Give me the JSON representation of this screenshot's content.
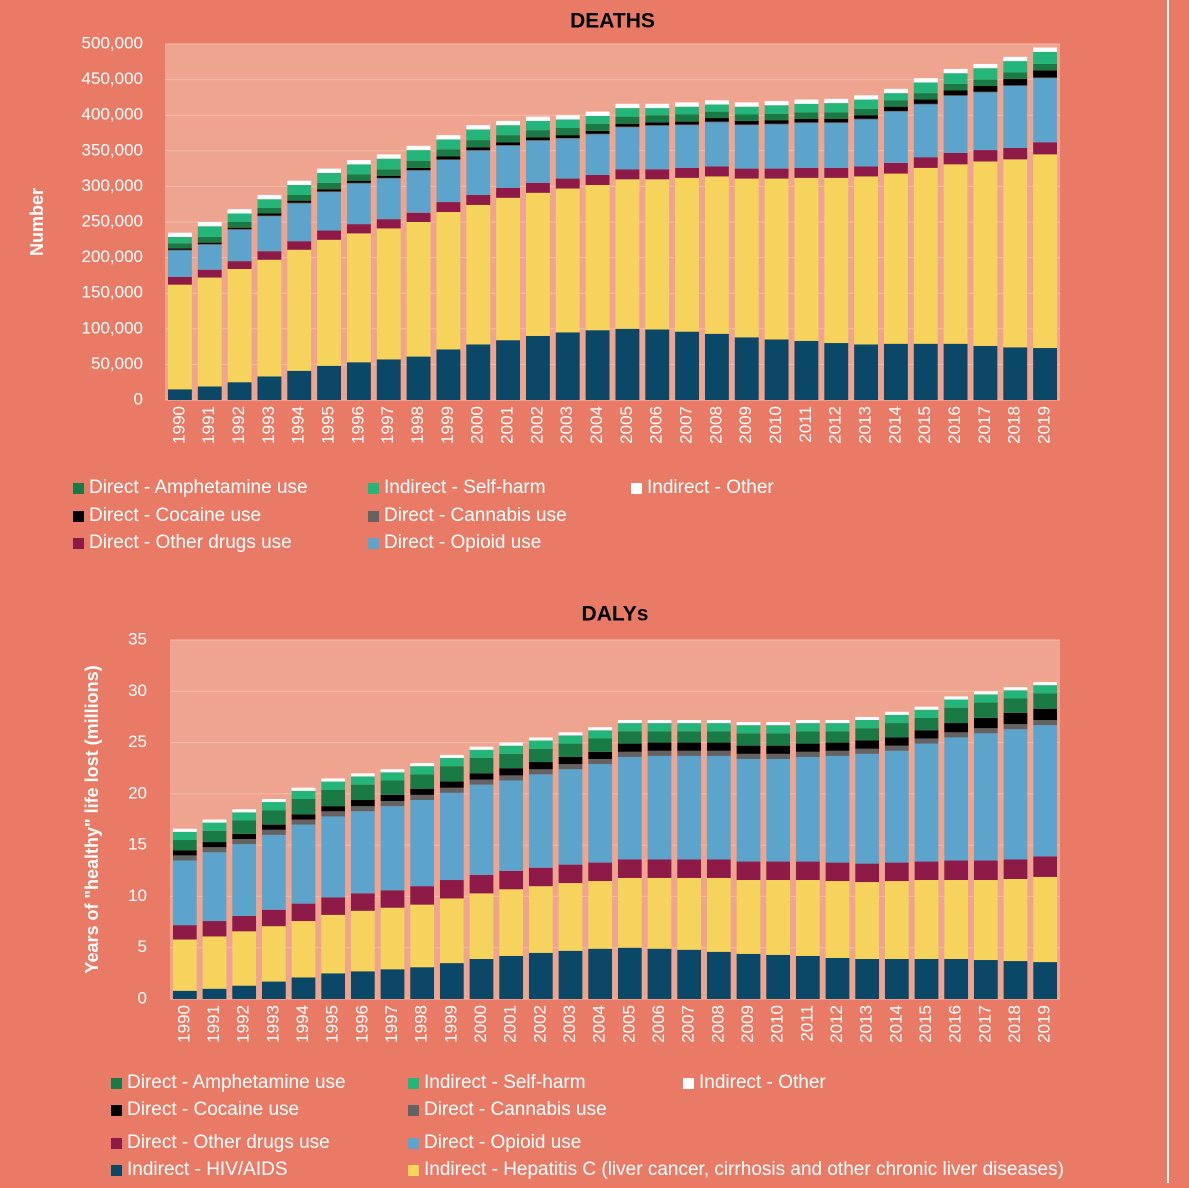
{
  "chart_data": [
    {
      "type": "stacked-bar",
      "title": "DEATHS",
      "y_label": "Number",
      "categories": [
        "1990",
        "1991",
        "1992",
        "1993",
        "1994",
        "1995",
        "1996",
        "1997",
        "1998",
        "1999",
        "2000",
        "2001",
        "2002",
        "2003",
        "2004",
        "2005",
        "2006",
        "2007",
        "2008",
        "2009",
        "2010",
        "2011",
        "2012",
        "2013",
        "2014",
        "2015",
        "2016",
        "2017",
        "2018",
        "2019"
      ],
      "ylim": [
        0,
        500000
      ],
      "yticks": [
        0,
        {
          "value": 50000,
          "label": "50,000"
        },
        {
          "value": 100000,
          "label": "100,000"
        },
        {
          "value": 150000,
          "label": "150,000"
        },
        {
          "value": 200000,
          "label": "200,000"
        },
        {
          "value": 250000,
          "label": "250,000"
        },
        {
          "value": 300000,
          "label": "300,000"
        },
        {
          "value": 350000,
          "label": "350,000"
        },
        {
          "value": 400000,
          "label": "400,000"
        },
        {
          "value": 450000,
          "label": "450,000"
        },
        {
          "value": 500000,
          "label": "500,000"
        }
      ],
      "grid": true,
      "series": [
        {
          "color": "#0b4766",
          "values": [
            15000,
            19000,
            25000,
            33000,
            41000,
            48000,
            53000,
            57000,
            61000,
            71000,
            78000,
            84000,
            90000,
            95000,
            98000,
            100000,
            99000,
            96000,
            93000,
            88000,
            85000,
            83000,
            80000,
            78000,
            79000,
            79000,
            79000,
            76000,
            74000,
            73000
          ]
        },
        {
          "color": "#f5d35c",
          "values": [
            147000,
            153000,
            159000,
            164000,
            170000,
            177000,
            181000,
            184000,
            189000,
            193000,
            196000,
            200000,
            201000,
            202000,
            204000,
            210000,
            211000,
            216000,
            221000,
            223000,
            226000,
            229000,
            232000,
            236000,
            239000,
            247000,
            252000,
            259000,
            264000,
            272000
          ]
        },
        {
          "name": "Direct - Other drugs use",
          "color": "#8e1a47",
          "values": [
            11000,
            11000,
            11000,
            12000,
            12000,
            13000,
            13000,
            13000,
            13000,
            14000,
            14000,
            14000,
            14000,
            14000,
            14000,
            14000,
            14000,
            14000,
            14000,
            14000,
            14000,
            14000,
            14000,
            14000,
            15000,
            15000,
            16000,
            16000,
            16000,
            17000
          ]
        },
        {
          "name": "Direct - Opioid use",
          "color": "#5da4cc",
          "values": [
            37000,
            35000,
            44000,
            49000,
            53000,
            54000,
            57000,
            57000,
            59000,
            59000,
            62000,
            59000,
            59000,
            56000,
            57000,
            59000,
            61000,
            60000,
            62000,
            61000,
            62000,
            63000,
            63000,
            66000,
            72000,
            74000,
            80000,
            81000,
            87000,
            90000
          ]
        },
        {
          "name": "Direct - Cannabis use",
          "color": "#636363",
          "values": [
            1000,
            1000,
            1000,
            1000,
            1000,
            1000,
            1000,
            1000,
            1000,
            1000,
            1000,
            1000,
            1000,
            1000,
            1000,
            1000,
            1000,
            1000,
            1000,
            1000,
            1000,
            1000,
            1000,
            1000,
            1000,
            1000,
            1000,
            1000,
            1000,
            1000
          ]
        },
        {
          "name": "Direct - Cocaine use",
          "color": "#000000",
          "values": [
            2000,
            2000,
            2000,
            3000,
            3000,
            3000,
            3000,
            3000,
            3000,
            4000,
            4000,
            4000,
            4000,
            4000,
            4000,
            4000,
            4000,
            4000,
            5000,
            5000,
            5000,
            5000,
            5000,
            5000,
            6000,
            6000,
            7000,
            8000,
            9000,
            10000
          ]
        },
        {
          "name": "Direct - Amphetamine use",
          "color": "#1a7a46",
          "values": [
            7000,
            8000,
            8000,
            8000,
            8000,
            9000,
            9000,
            9000,
            10000,
            10000,
            10000,
            10000,
            10000,
            10000,
            10000,
            10000,
            10000,
            10000,
            9000,
            9000,
            9000,
            9000,
            9000,
            9000,
            9000,
            9000,
            9000,
            9000,
            9000,
            9000
          ]
        },
        {
          "name": "Indirect - Self-harm",
          "color": "#24b57a",
          "values": [
            9000,
            15000,
            12000,
            12000,
            14000,
            14000,
            14000,
            15000,
            15000,
            14000,
            15000,
            14000,
            13000,
            12000,
            11000,
            12000,
            10000,
            11000,
            10000,
            11000,
            12000,
            12000,
            13000,
            13000,
            10000,
            15000,
            15000,
            16000,
            16000,
            17000
          ]
        },
        {
          "name": "Indirect - Other",
          "color": "#ffffff",
          "values": [
            6000,
            6000,
            6000,
            6000,
            6000,
            6000,
            6000,
            6000,
            6000,
            6000,
            6000,
            6000,
            6000,
            6000,
            6000,
            6000,
            6000,
            6000,
            6000,
            6000,
            6000,
            6000,
            6000,
            6000,
            6000,
            6000,
            6000,
            6000,
            6000,
            6000
          ]
        }
      ]
    },
    {
      "type": "stacked-bar",
      "title": "DALYs",
      "y_label": "Years of \"healthy\" life lost (millions)",
      "categories": [
        "1990",
        "1991",
        "1992",
        "1993",
        "1994",
        "1995",
        "1996",
        "1997",
        "1998",
        "1999",
        "2000",
        "2001",
        "2002",
        "2003",
        "2004",
        "2005",
        "2006",
        "2007",
        "2008",
        "2009",
        "2010",
        "2011",
        "2012",
        "2013",
        "2014",
        "2015",
        "2016",
        "2017",
        "2018",
        "2019"
      ],
      "ylim": [
        0,
        35
      ],
      "yticks": [
        0,
        5,
        10,
        15,
        20,
        25,
        30,
        35
      ],
      "grid": true,
      "series": [
        {
          "name": "Indirect - HIV/AIDS",
          "color": "#0b4766",
          "values": [
            0.8,
            1.0,
            1.3,
            1.7,
            2.1,
            2.5,
            2.7,
            2.9,
            3.1,
            3.5,
            3.9,
            4.2,
            4.5,
            4.7,
            4.9,
            5.0,
            4.9,
            4.8,
            4.6,
            4.4,
            4.3,
            4.2,
            4.0,
            3.9,
            3.9,
            3.9,
            3.9,
            3.8,
            3.7,
            3.6
          ]
        },
        {
          "name": "Indirect - Hepatitis C (liver cancer, cirrhosis and other chronic liver diseases)",
          "color": "#f5d35c",
          "values": [
            5.0,
            5.1,
            5.3,
            5.4,
            5.5,
            5.7,
            5.9,
            6.0,
            6.1,
            6.3,
            6.4,
            6.5,
            6.5,
            6.6,
            6.6,
            6.8,
            6.9,
            7.0,
            7.2,
            7.2,
            7.3,
            7.4,
            7.5,
            7.5,
            7.6,
            7.7,
            7.7,
            7.8,
            8.0,
            8.3
          ]
        },
        {
          "name": "Direct - Other drugs use",
          "color": "#8e1a47",
          "values": [
            1.4,
            1.5,
            1.5,
            1.6,
            1.7,
            1.7,
            1.7,
            1.7,
            1.8,
            1.8,
            1.8,
            1.8,
            1.8,
            1.8,
            1.8,
            1.8,
            1.8,
            1.8,
            1.8,
            1.8,
            1.8,
            1.8,
            1.8,
            1.8,
            1.8,
            1.8,
            1.9,
            1.9,
            1.9,
            2.0
          ]
        },
        {
          "name": "Direct - Opioid use",
          "color": "#5da4cc",
          "values": [
            6.3,
            6.7,
            7.0,
            7.3,
            7.7,
            7.9,
            8.0,
            8.2,
            8.4,
            8.5,
            8.8,
            8.8,
            9.1,
            9.3,
            9.6,
            10.0,
            10.1,
            10.1,
            10.1,
            10.0,
            10.0,
            10.2,
            10.4,
            10.7,
            10.9,
            11.5,
            12.0,
            12.4,
            12.7,
            12.8
          ]
        },
        {
          "name": "Direct - Cannabis use",
          "color": "#636363",
          "values": [
            0.5,
            0.5,
            0.5,
            0.5,
            0.5,
            0.5,
            0.5,
            0.5,
            0.5,
            0.5,
            0.5,
            0.5,
            0.5,
            0.5,
            0.5,
            0.5,
            0.5,
            0.5,
            0.5,
            0.5,
            0.5,
            0.5,
            0.5,
            0.5,
            0.5,
            0.5,
            0.5,
            0.5,
            0.5,
            0.5
          ]
        },
        {
          "name": "Direct - Cocaine use",
          "color": "#000000",
          "values": [
            0.5,
            0.5,
            0.5,
            0.5,
            0.5,
            0.5,
            0.6,
            0.6,
            0.6,
            0.6,
            0.6,
            0.7,
            0.7,
            0.7,
            0.7,
            0.8,
            0.8,
            0.8,
            0.8,
            0.8,
            0.8,
            0.8,
            0.8,
            0.8,
            0.8,
            0.8,
            0.9,
            1.0,
            1.1,
            1.1
          ]
        },
        {
          "name": "Direct - Amphetamine use",
          "color": "#1a7a46",
          "values": [
            1.0,
            1.1,
            1.3,
            1.4,
            1.5,
            1.6,
            1.5,
            1.4,
            1.4,
            1.5,
            1.5,
            1.4,
            1.3,
            1.3,
            1.3,
            1.2,
            1.1,
            1.1,
            1.1,
            1.2,
            1.2,
            1.2,
            1.1,
            1.2,
            1.4,
            1.2,
            1.5,
            1.5,
            1.4,
            1.5
          ]
        },
        {
          "name": "Indirect - Self-harm",
          "color": "#24b57a",
          "values": [
            0.8,
            0.8,
            0.8,
            0.8,
            0.8,
            0.8,
            0.8,
            0.8,
            0.8,
            0.8,
            0.8,
            0.8,
            0.8,
            0.8,
            0.8,
            0.8,
            0.8,
            0.8,
            0.8,
            0.8,
            0.8,
            0.8,
            0.8,
            0.8,
            0.8,
            0.8,
            0.8,
            0.8,
            0.8,
            0.8
          ]
        },
        {
          "name": "Indirect - Other",
          "color": "#ffffff",
          "values": [
            0.3,
            0.3,
            0.3,
            0.3,
            0.3,
            0.3,
            0.3,
            0.3,
            0.3,
            0.3,
            0.3,
            0.3,
            0.3,
            0.3,
            0.3,
            0.3,
            0.3,
            0.3,
            0.3,
            0.3,
            0.3,
            0.3,
            0.3,
            0.3,
            0.3,
            0.3,
            0.3,
            0.3,
            0.3,
            0.3
          ]
        }
      ]
    }
  ]
}
